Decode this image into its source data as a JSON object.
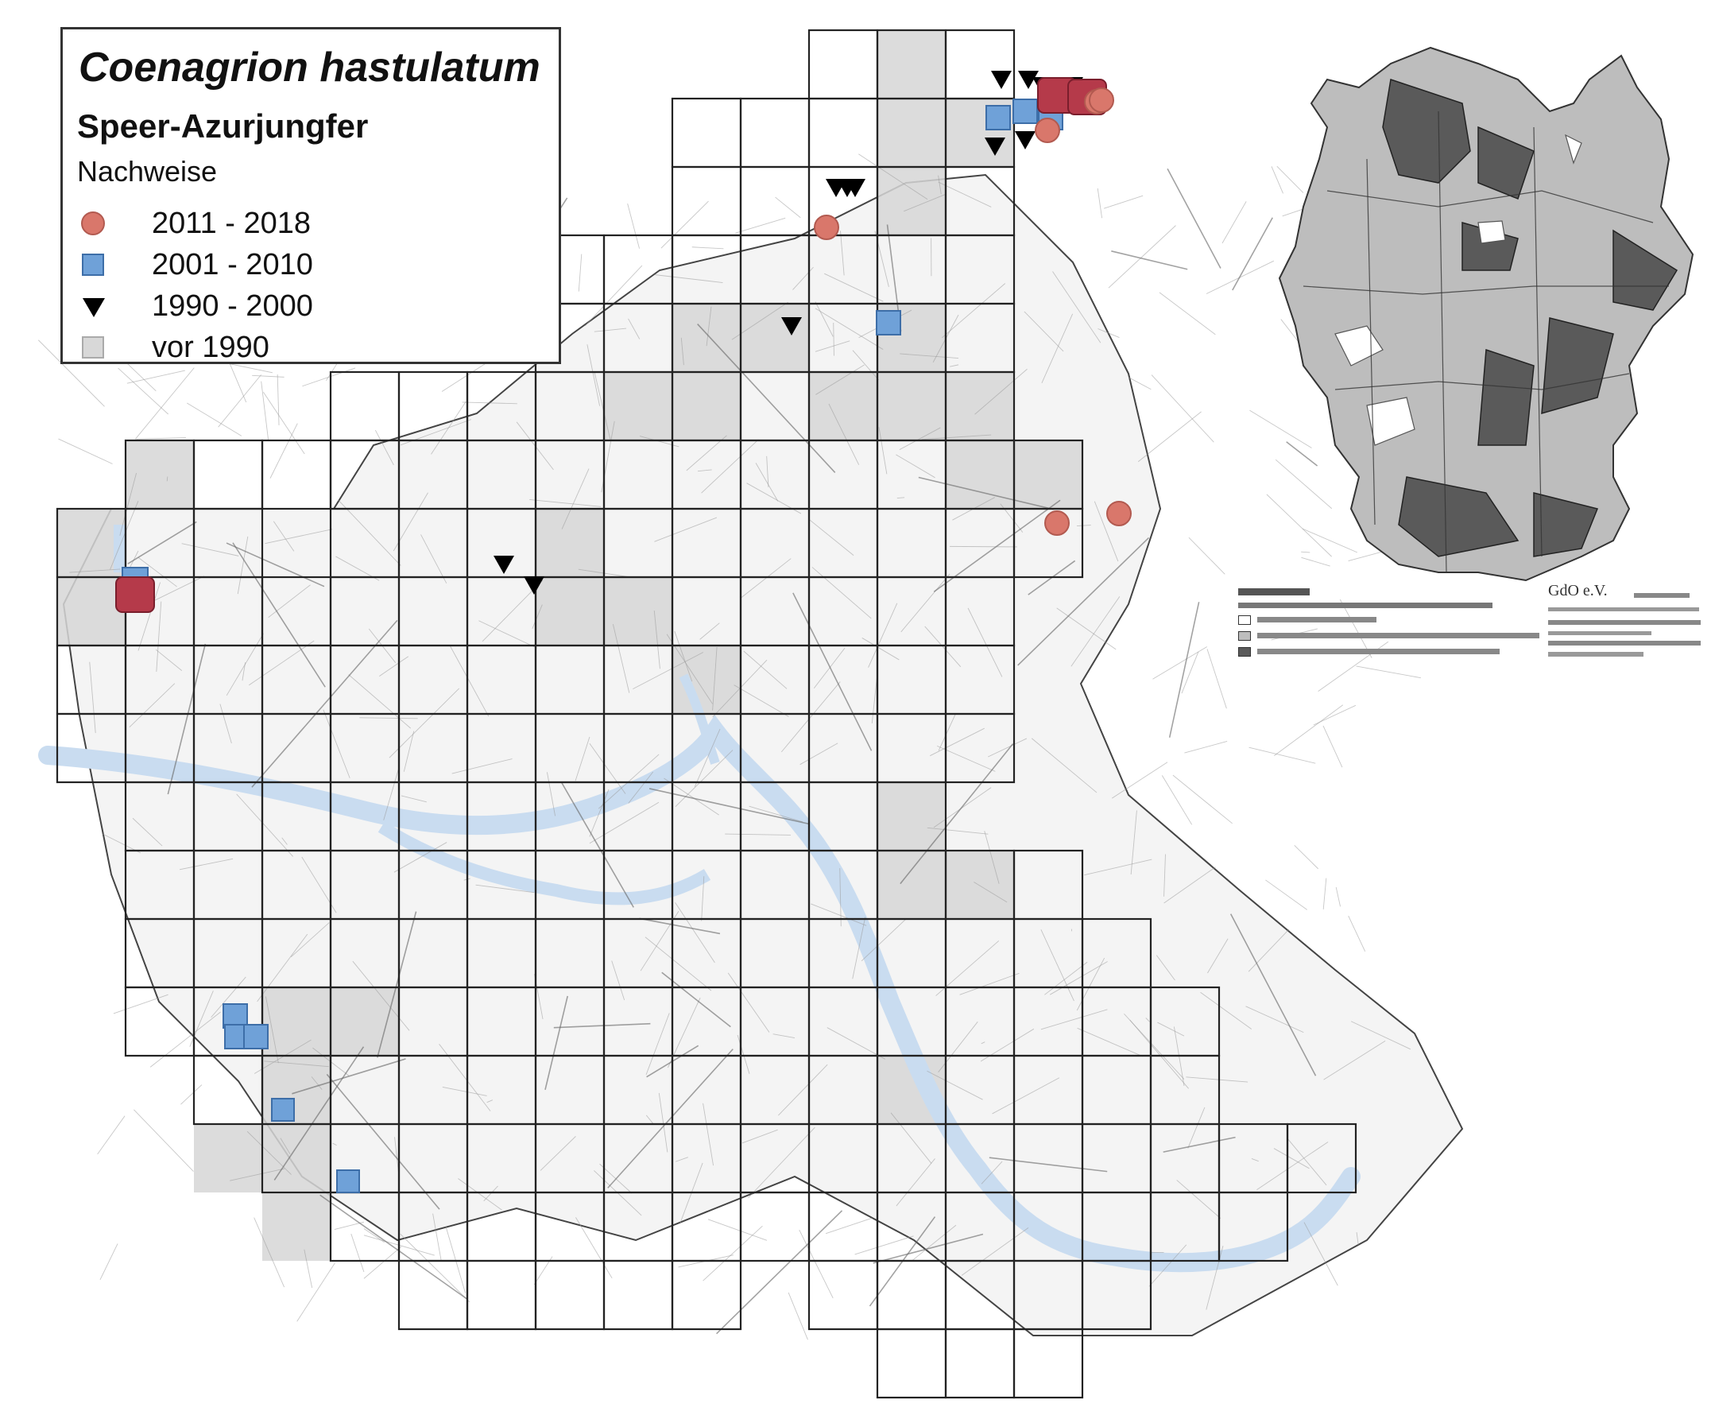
{
  "legend": {
    "title": "Coenagrion hastulatum",
    "subtitle": "Speer-Azurjungfer",
    "heading": "Nachweise",
    "items": [
      {
        "label": "2011 - 2018",
        "symbol": "circle",
        "color": "#d9776b"
      },
      {
        "label": "2001 - 2010",
        "symbol": "square",
        "color": "#6fa1d8"
      },
      {
        "label": "1990 - 2000",
        "symbol": "triangle-down",
        "color": "#000000"
      },
      {
        "label": "vor 1990",
        "symbol": "grey-cell",
        "color": "#d8d8d8"
      }
    ]
  },
  "inset": {
    "title_text": "GdO e.V.",
    "region_colors": {
      "light": "#bdbdbd",
      "dark": "#5a5a5a",
      "none": "#ffffff"
    }
  },
  "colors": {
    "grid_line": "#222222",
    "water": "#c9dcf0",
    "roads": "#9a9a9a",
    "cell_pre1990": "#d6d6d6"
  }
}
